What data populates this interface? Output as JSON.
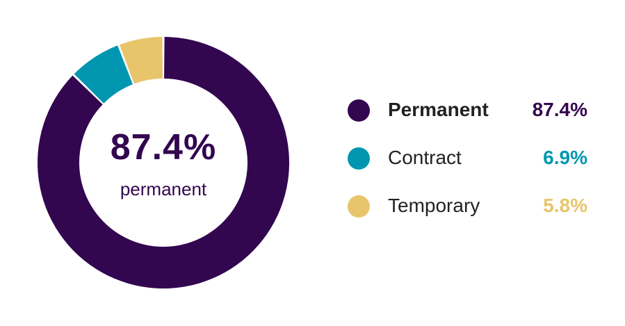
{
  "chart_data": {
    "type": "pie",
    "variant": "donut",
    "categories": [
      "Permanent",
      "Contract",
      "Temporary"
    ],
    "values": [
      87.4,
      6.9,
      5.8
    ],
    "value_labels": [
      "87.4%",
      "6.9%",
      "5.8%"
    ],
    "colors": [
      "#330650",
      "#0096B0",
      "#E8C56B"
    ],
    "center_value": "87.4%",
    "center_label": "permanent",
    "legend_position": "right"
  }
}
